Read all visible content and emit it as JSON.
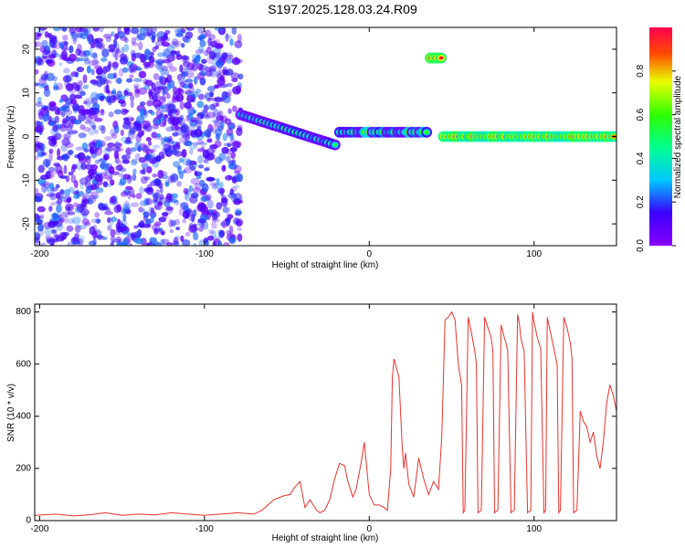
{
  "title": "S197.2025.128.03.24.R09",
  "chart_data": [
    {
      "type": "heatmap",
      "xlabel": "Height of straight line (km)",
      "ylabel": "Frequency (Hz)",
      "xlim": [
        -203,
        150
      ],
      "ylim": [
        -25,
        25
      ],
      "xticks": [
        -200,
        -100,
        0,
        100
      ],
      "yticks": [
        -20,
        -10,
        0,
        10,
        20
      ],
      "colorbar": {
        "label": "Normalized spectral amplitude",
        "range": [
          0,
          1
        ],
        "ticks": [
          "0.0",
          "0.2",
          "0.4",
          "0.6",
          "0.8"
        ],
        "tick_values": [
          0,
          0.2,
          0.4,
          0.6,
          0.8
        ],
        "colormap": "rainbow (violet → blue → cyan → green → yellow → red)"
      },
      "features": [
        {
          "x_range": [
            -203,
            -78
          ],
          "freq_range": [
            -25,
            25
          ],
          "description": "broadband scattered noise",
          "amplitude": [
            0.05,
            0.25
          ]
        },
        {
          "x_range": [
            -78,
            -20
          ],
          "freq_start": 5,
          "freq_end": -2,
          "description": "drifting tone",
          "amplitude": [
            0.4,
            0.6
          ]
        },
        {
          "x_range": [
            -18,
            35
          ],
          "freq": 1,
          "description": "tone segments",
          "amplitude": [
            0.4,
            0.8
          ]
        },
        {
          "x_range": [
            37,
            45
          ],
          "freq": 18,
          "description": "isolated burst",
          "amplitude": [
            0.9,
            1.0
          ]
        },
        {
          "x_range": [
            45,
            150
          ],
          "freq": 0,
          "description": "periodic tone pulses",
          "amplitude": [
            0.8,
            1.0
          ]
        }
      ]
    },
    {
      "type": "line",
      "xlabel": "Height of straight line (km)",
      "ylabel": "SNR (10 * v/v)",
      "xlim": [
        -203,
        150
      ],
      "ylim": [
        0,
        830
      ],
      "xticks": [
        -200,
        -100,
        0,
        100
      ],
      "yticks": [
        0,
        200,
        400,
        600,
        800
      ],
      "color": "#e8322d",
      "series": [
        {
          "x": [
            -203,
            -190,
            -180,
            -170,
            -160,
            -150,
            -140,
            -130,
            -120,
            -110,
            -100,
            -90,
            -80,
            -70,
            -65,
            -58,
            -52,
            -48,
            -45,
            -42,
            -39,
            -36,
            -34,
            -32,
            -30,
            -27,
            -24,
            -21,
            -18,
            -15,
            -13,
            -10,
            -8,
            -5,
            -3,
            0,
            3,
            6,
            9,
            11,
            13,
            14,
            15,
            18,
            20,
            21,
            22,
            24,
            27,
            30,
            33,
            36,
            39,
            42,
            44,
            46,
            48,
            50,
            52,
            54,
            56,
            57,
            58,
            60,
            62,
            64,
            65,
            66,
            68,
            70,
            72,
            74,
            75,
            76,
            78,
            80,
            82,
            83,
            84,
            86,
            88,
            90,
            91,
            92,
            94,
            96,
            98,
            99,
            100,
            102,
            104,
            106,
            107,
            108,
            110,
            112,
            114,
            115,
            116,
            118,
            120,
            122,
            123,
            124,
            126,
            128,
            130,
            132,
            134,
            136,
            138,
            140,
            142,
            144,
            146,
            148,
            150
          ],
          "y": [
            20,
            25,
            18,
            22,
            30,
            20,
            25,
            22,
            30,
            25,
            20,
            25,
            30,
            25,
            40,
            80,
            95,
            100,
            130,
            150,
            50,
            80,
            60,
            40,
            30,
            40,
            80,
            160,
            220,
            210,
            150,
            90,
            120,
            220,
            300,
            100,
            60,
            60,
            50,
            40,
            200,
            550,
            620,
            550,
            280,
            200,
            260,
            140,
            90,
            240,
            160,
            100,
            150,
            120,
            320,
            770,
            780,
            800,
            770,
            600,
            520,
            30,
            40,
            780,
            720,
            650,
            600,
            30,
            40,
            780,
            740,
            700,
            650,
            30,
            40,
            750,
            700,
            680,
            650,
            30,
            40,
            790,
            760,
            700,
            650,
            30,
            40,
            800,
            760,
            700,
            660,
            30,
            40,
            780,
            720,
            660,
            600,
            30,
            40,
            780,
            740,
            680,
            620,
            30,
            40,
            420,
            380,
            360,
            300,
            340,
            250,
            200,
            300,
            450,
            520,
            480,
            420
          ]
        }
      ]
    }
  ]
}
